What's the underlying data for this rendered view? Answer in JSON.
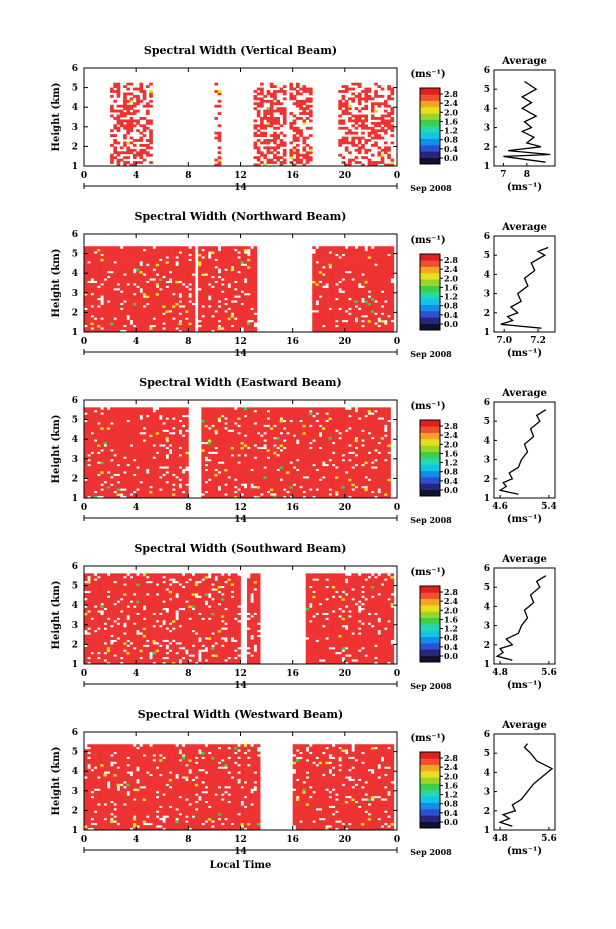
{
  "figure": {
    "ylabel": "Height (km)",
    "xlabel": "Local Time",
    "date_label": "Sep 2008",
    "day_label": "14",
    "unit_label": "(ms⁻¹)",
    "average_title": "Average"
  },
  "colors": {
    "echo": "#ee3333",
    "scale": [
      "#101030",
      "#27277a",
      "#2e4fd6",
      "#0f8fe6",
      "#14c4e6",
      "#24d9b0",
      "#3ccf4a",
      "#9bd42a",
      "#e6e01c",
      "#f6a423",
      "#f05030",
      "#e01f1f"
    ]
  },
  "chart_data": [
    {
      "type": "heatmap",
      "title": "Spectral Width (Vertical Beam)",
      "xlabel": "",
      "ylabel": "Height (km)",
      "x_ticks": [
        "0",
        "4",
        "8",
        "12",
        "16",
        "20",
        "0"
      ],
      "y_ticks": [
        "1",
        "2",
        "3",
        "4",
        "5",
        "6"
      ],
      "xlim": [
        0,
        24
      ],
      "ylim": [
        1,
        6
      ],
      "colorbar": {
        "label": "(ms⁻¹)",
        "ticks": [
          "0.0",
          "0.4",
          "0.8",
          "1.2",
          "1.6",
          "2.0",
          "2.4",
          "2.8"
        ]
      },
      "echo_windows": [
        [
          2.0,
          5.3
        ],
        [
          10.0,
          10.6
        ],
        [
          13.0,
          15.5
        ],
        [
          15.8,
          17.5
        ],
        [
          19.5,
          23.8
        ]
      ],
      "echo_top_km": 5.2,
      "density": 0.45,
      "average_profile": {
        "title": "Average",
        "xlabel": "(ms⁻¹)",
        "x_ticks": [
          "7",
          "8"
        ],
        "y_ticks": [
          "1",
          "2",
          "3",
          "4",
          "5",
          "6"
        ],
        "xlim": [
          6.6,
          9.2
        ],
        "ylim": [
          1,
          6
        ],
        "heights": [
          1.2,
          1.5,
          1.6,
          1.8,
          2.0,
          2.2,
          2.5,
          2.8,
          3.0,
          3.3,
          3.6,
          4.0,
          4.3,
          4.6,
          5.0,
          5.4
        ],
        "values": [
          8.8,
          7.0,
          9.0,
          7.2,
          8.6,
          8.0,
          8.3,
          7.8,
          8.2,
          7.9,
          8.4,
          7.8,
          8.2,
          7.8,
          8.4,
          7.9
        ]
      }
    },
    {
      "type": "heatmap",
      "title": "Spectral Width (Northward Beam)",
      "xlabel": "",
      "ylabel": "Height (km)",
      "x_ticks": [
        "0",
        "4",
        "8",
        "12",
        "16",
        "20",
        "0"
      ],
      "y_ticks": [
        "1",
        "2",
        "3",
        "4",
        "5",
        "6"
      ],
      "xlim": [
        0,
        24
      ],
      "ylim": [
        1,
        6
      ],
      "colorbar": {
        "label": "(ms⁻¹)",
        "ticks": [
          "0.0",
          "0.4",
          "0.8",
          "1.2",
          "1.6",
          "2.0",
          "2.4",
          "2.8"
        ]
      },
      "echo_windows": [
        [
          0.0,
          8.5
        ],
        [
          8.8,
          13.2
        ],
        [
          17.5,
          23.8
        ]
      ],
      "echo_top_km": 5.4,
      "density": 0.9,
      "average_profile": {
        "title": "Average",
        "xlabel": "(ms⁻¹)",
        "x_ticks": [
          "7.0",
          "7.2"
        ],
        "y_ticks": [
          "1",
          "2",
          "3",
          "4",
          "5",
          "6"
        ],
        "xlim": [
          6.94,
          7.3
        ],
        "ylim": [
          1,
          6
        ],
        "heights": [
          1.2,
          1.4,
          1.6,
          1.8,
          2.0,
          2.3,
          2.6,
          3.0,
          3.4,
          3.8,
          4.2,
          4.6,
          5.0,
          5.2,
          5.4
        ],
        "values": [
          7.22,
          6.98,
          7.05,
          7.02,
          7.08,
          7.04,
          7.1,
          7.08,
          7.14,
          7.12,
          7.18,
          7.16,
          7.24,
          7.2,
          7.26
        ]
      }
    },
    {
      "type": "heatmap",
      "title": "Spectral Width (Eastward Beam)",
      "xlabel": "",
      "ylabel": "Height (km)",
      "x_ticks": [
        "0",
        "4",
        "8",
        "12",
        "16",
        "20",
        "0"
      ],
      "y_ticks": [
        "1",
        "2",
        "3",
        "4",
        "5",
        "6"
      ],
      "xlim": [
        0,
        24
      ],
      "ylim": [
        1,
        6
      ],
      "colorbar": {
        "label": "(ms⁻¹)",
        "ticks": [
          "0.0",
          "0.4",
          "0.8",
          "1.2",
          "1.6",
          "2.0",
          "2.4",
          "2.8"
        ]
      },
      "echo_windows": [
        [
          0.0,
          8.0
        ],
        [
          9.0,
          23.5
        ]
      ],
      "echo_top_km": 5.6,
      "density": 0.9,
      "average_profile": {
        "title": "Average",
        "xlabel": "(ms⁻¹)",
        "x_ticks": [
          "4.6",
          "5.4"
        ],
        "y_ticks": [
          "1",
          "2",
          "3",
          "4",
          "5",
          "6"
        ],
        "xlim": [
          4.5,
          5.5
        ],
        "ylim": [
          1,
          6
        ],
        "heights": [
          1.2,
          1.4,
          1.6,
          1.8,
          2.0,
          2.3,
          2.6,
          3.0,
          3.4,
          3.8,
          4.2,
          4.6,
          5.0,
          5.3,
          5.6
        ],
        "values": [
          4.9,
          4.6,
          4.7,
          4.65,
          4.8,
          4.75,
          4.9,
          4.95,
          5.05,
          5.0,
          5.15,
          5.1,
          5.25,
          5.2,
          5.35
        ]
      }
    },
    {
      "type": "heatmap",
      "title": "Spectral Width (Southward Beam)",
      "xlabel": "",
      "ylabel": "Height (km)",
      "x_ticks": [
        "0",
        "4",
        "8",
        "12",
        "16",
        "20",
        "0"
      ],
      "y_ticks": [
        "1",
        "2",
        "3",
        "4",
        "5",
        "6"
      ],
      "xlim": [
        0,
        24
      ],
      "ylim": [
        1,
        6
      ],
      "colorbar": {
        "label": "(ms⁻¹)",
        "ticks": [
          "0.0",
          "0.4",
          "0.8",
          "1.2",
          "1.6",
          "2.0",
          "2.4",
          "2.8"
        ]
      },
      "echo_windows": [
        [
          0.0,
          12.0
        ],
        [
          12.5,
          13.5
        ],
        [
          17.0,
          23.8
        ]
      ],
      "echo_top_km": 5.6,
      "density": 0.88,
      "average_profile": {
        "title": "Average",
        "xlabel": "(ms⁻¹)",
        "x_ticks": [
          "4.8",
          "5.6"
        ],
        "y_ticks": [
          "1",
          "2",
          "3",
          "4",
          "5",
          "6"
        ],
        "xlim": [
          4.7,
          5.7
        ],
        "ylim": [
          1,
          6
        ],
        "heights": [
          1.2,
          1.4,
          1.6,
          1.8,
          2.0,
          2.3,
          2.6,
          3.0,
          3.4,
          3.8,
          4.2,
          4.6,
          5.0,
          5.3,
          5.6
        ],
        "values": [
          5.0,
          4.75,
          4.85,
          4.8,
          5.0,
          4.9,
          5.1,
          5.15,
          5.25,
          5.2,
          5.35,
          5.3,
          5.45,
          5.4,
          5.55
        ]
      }
    },
    {
      "type": "heatmap",
      "title": "Spectral Width (Westward Beam)",
      "xlabel": "Local Time",
      "ylabel": "Height (km)",
      "x_ticks": [
        "0",
        "4",
        "8",
        "12",
        "16",
        "20",
        "0"
      ],
      "y_ticks": [
        "1",
        "2",
        "3",
        "4",
        "5",
        "6"
      ],
      "xlim": [
        0,
        24
      ],
      "ylim": [
        1,
        6
      ],
      "colorbar": {
        "label": "(ms⁻¹)",
        "ticks": [
          "0.0",
          "0.4",
          "0.8",
          "1.2",
          "1.6",
          "2.0",
          "2.4",
          "2.8"
        ]
      },
      "echo_windows": [
        [
          0.0,
          13.5
        ],
        [
          16.0,
          23.8
        ]
      ],
      "echo_top_km": 5.4,
      "density": 0.88,
      "average_profile": {
        "title": "Average",
        "xlabel": "(ms⁻¹)",
        "x_ticks": [
          "4.8",
          "5.6"
        ],
        "y_ticks": [
          "1",
          "2",
          "3",
          "4",
          "5",
          "6"
        ],
        "xlim": [
          4.7,
          5.7
        ],
        "ylim": [
          1,
          6
        ],
        "heights": [
          1.2,
          1.4,
          1.6,
          1.8,
          2.0,
          2.3,
          2.6,
          3.0,
          3.4,
          3.8,
          4.2,
          4.6,
          5.0,
          5.3,
          5.5
        ],
        "values": [
          5.0,
          4.8,
          4.95,
          4.85,
          5.05,
          5.0,
          5.15,
          5.25,
          5.35,
          5.5,
          5.65,
          5.4,
          5.3,
          5.2,
          5.25
        ]
      }
    }
  ]
}
